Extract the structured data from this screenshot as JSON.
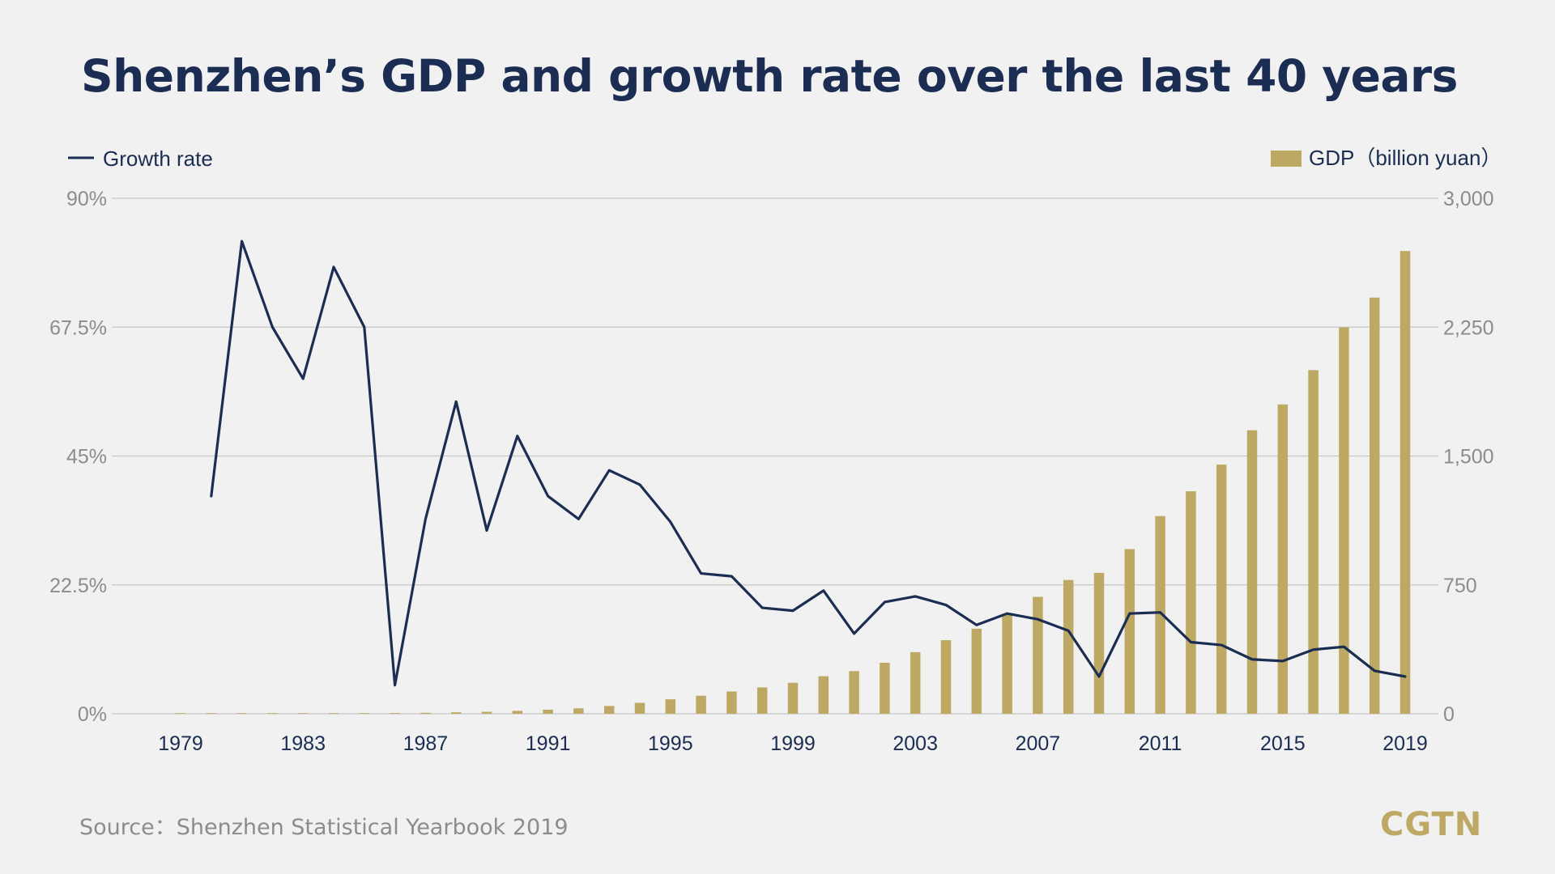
{
  "title": "Shenzhen’s GDP and growth rate over the last 40 years",
  "source": "Source：Shenzhen Statistical Yearbook 2019",
  "logo": "CGTN",
  "colors": {
    "line": "#1b2d52",
    "bar": "#bea964",
    "grid": "#c6c6c6",
    "text": "#8c8c8c",
    "title": "#1b2d52"
  },
  "chart_data": {
    "type": "bar",
    "x": [
      1979,
      1980,
      1981,
      1982,
      1983,
      1984,
      1985,
      1986,
      1987,
      1988,
      1989,
      1990,
      1991,
      1992,
      1993,
      1994,
      1995,
      1996,
      1997,
      1998,
      1999,
      2000,
      2001,
      2002,
      2003,
      2004,
      2005,
      2006,
      2007,
      2008,
      2009,
      2010,
      2011,
      2012,
      2013,
      2014,
      2015,
      2016,
      2017,
      2018,
      2019
    ],
    "xticks": [
      "1979",
      "1983",
      "1987",
      "1991",
      "1995",
      "1999",
      "2003",
      "2007",
      "2011",
      "2015",
      "2019"
    ],
    "grid": true,
    "legend_position": "top",
    "series": [
      {
        "name": "Growth rate",
        "type": "line",
        "axis": "left",
        "values": [
          null,
          38,
          82.5,
          67.5,
          58.5,
          78,
          67.5,
          5,
          34,
          54.5,
          32,
          48.5,
          38,
          34,
          42.5,
          40,
          33.5,
          24.5,
          24,
          18.5,
          18,
          21.5,
          14,
          19.5,
          20.5,
          19,
          15.5,
          17.5,
          16.5,
          14.5,
          6.5,
          17.5,
          17.7,
          12.5,
          12,
          9.5,
          9.2,
          11.2,
          11.7,
          7.5,
          6.5
        ]
      },
      {
        "name": "GDP（billion yuan）",
        "type": "bar",
        "axis": "right",
        "values": [
          0.2,
          0.3,
          0.5,
          0.8,
          1.3,
          2.3,
          3.9,
          4.2,
          5.6,
          8.7,
          11.6,
          17.2,
          23.7,
          31.7,
          45.3,
          63.5,
          84.2,
          104.8,
          129.7,
          153.5,
          180.4,
          218.7,
          248.2,
          296.9,
          358.6,
          428.2,
          495.1,
          581.4,
          680.2,
          778.7,
          820.1,
          958.2,
          1150.6,
          1295.0,
          1450.0,
          1650.0,
          1800.0,
          2000.0,
          2249.0,
          2422.0,
          2693.0
        ]
      }
    ],
    "y_left": {
      "ticks": [
        "0%",
        "22.5%",
        "45%",
        "67.5%",
        "90%"
      ],
      "ylim": [
        0,
        90
      ]
    },
    "y_right": {
      "ticks": [
        "0",
        "750",
        "1,500",
        "2,250",
        "3,000"
      ],
      "ylim": [
        0,
        3000
      ]
    }
  }
}
